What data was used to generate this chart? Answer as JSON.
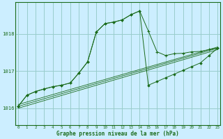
{
  "title": "Graphe pression niveau de la mer (hPa)",
  "background_color": "#cceeff",
  "grid_color": "#99cccc",
  "line_color": "#1a6b1a",
  "x_ticks": [
    0,
    1,
    2,
    3,
    4,
    5,
    6,
    7,
    8,
    9,
    10,
    11,
    12,
    13,
    14,
    15,
    16,
    17,
    18,
    19,
    20,
    21,
    22,
    23
  ],
  "y_ticks": [
    1016,
    1017,
    1018
  ],
  "ylim": [
    1015.55,
    1018.85
  ],
  "xlim": [
    -0.3,
    23.3
  ],
  "series1_x": [
    0,
    1,
    2,
    3,
    4,
    5,
    6,
    7,
    8,
    9,
    10,
    11,
    12,
    13,
    14,
    15,
    16,
    17,
    18,
    19,
    20,
    21,
    22,
    23
  ],
  "series1_y": [
    1016.05,
    1016.35,
    1016.45,
    1016.52,
    1016.58,
    1016.62,
    1016.68,
    1016.95,
    1017.25,
    1018.05,
    1018.28,
    1018.32,
    1018.38,
    1018.52,
    1018.62,
    1018.08,
    1017.52,
    1017.42,
    1017.47,
    1017.48,
    1017.52,
    1017.53,
    1017.58,
    1017.62
  ],
  "series2_x": [
    0,
    1,
    2,
    3,
    4,
    5,
    6,
    7,
    8,
    9,
    10,
    11,
    12,
    13,
    14,
    15,
    16,
    17,
    18,
    19,
    20,
    21,
    22,
    23
  ],
  "series2_y": [
    1016.05,
    1016.35,
    1016.45,
    1016.52,
    1016.58,
    1016.62,
    1016.68,
    1016.95,
    1017.25,
    1018.05,
    1018.28,
    1018.32,
    1018.38,
    1018.52,
    1018.62,
    1016.62,
    1016.72,
    1016.82,
    1016.92,
    1017.02,
    1017.12,
    1017.22,
    1017.42,
    1017.62
  ],
  "reg_lines": [
    {
      "x0": 0,
      "y0": 1016.05,
      "x1": 23,
      "y1": 1017.62
    },
    {
      "x0": 0,
      "y0": 1016.1,
      "x1": 23,
      "y1": 1017.65
    },
    {
      "x0": 0,
      "y0": 1016.0,
      "x1": 23,
      "y1": 1017.58
    }
  ]
}
